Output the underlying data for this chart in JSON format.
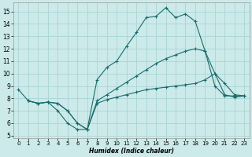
{
  "xlabel": "Humidex (Indice chaleur)",
  "background_color": "#cceaea",
  "grid_color": "#aad4d4",
  "line_color": "#1a6b6b",
  "xlim": [
    -0.5,
    23.5
  ],
  "ylim": [
    4.8,
    15.7
  ],
  "yticks": [
    5,
    6,
    7,
    8,
    9,
    10,
    11,
    12,
    13,
    14,
    15
  ],
  "xticks": [
    0,
    1,
    2,
    3,
    4,
    5,
    6,
    7,
    8,
    9,
    10,
    11,
    12,
    13,
    14,
    15,
    16,
    17,
    18,
    19,
    20,
    21,
    22,
    23
  ],
  "series": [
    {
      "x": [
        0,
        1,
        2,
        3,
        4,
        5,
        6,
        7,
        8,
        9,
        10,
        11,
        12,
        13,
        14,
        15,
        16,
        17,
        18,
        19,
        20,
        21,
        22,
        23
      ],
      "y": [
        8.7,
        7.8,
        7.6,
        7.7,
        7.0,
        6.0,
        5.5,
        5.5,
        9.5,
        10.5,
        11.0,
        12.2,
        13.3,
        14.5,
        14.6,
        15.3,
        14.5,
        14.8,
        14.2,
        11.8,
        9.0,
        8.2,
        8.2,
        8.2
      ]
    },
    {
      "x": [
        1,
        2,
        3,
        4,
        5,
        6,
        7,
        8,
        9,
        10,
        11,
        12,
        13,
        14,
        15,
        16,
        17,
        18,
        19,
        20,
        21,
        22,
        23
      ],
      "y": [
        7.8,
        7.6,
        7.7,
        7.6,
        7.0,
        6.0,
        5.5,
        7.8,
        8.3,
        8.8,
        9.3,
        9.8,
        10.3,
        10.8,
        11.2,
        11.5,
        11.8,
        12.0,
        11.8,
        10.0,
        9.2,
        8.3,
        8.2
      ]
    },
    {
      "x": [
        1,
        2,
        3,
        4,
        5,
        6,
        7,
        8,
        9,
        10,
        11,
        12,
        13,
        14,
        15,
        16,
        17,
        18,
        19,
        20,
        21,
        22,
        23
      ],
      "y": [
        7.8,
        7.6,
        7.7,
        7.6,
        7.0,
        6.0,
        5.5,
        7.6,
        7.9,
        8.1,
        8.3,
        8.5,
        8.7,
        8.8,
        8.9,
        9.0,
        9.1,
        9.2,
        9.5,
        10.0,
        8.3,
        8.1,
        8.2
      ]
    }
  ]
}
